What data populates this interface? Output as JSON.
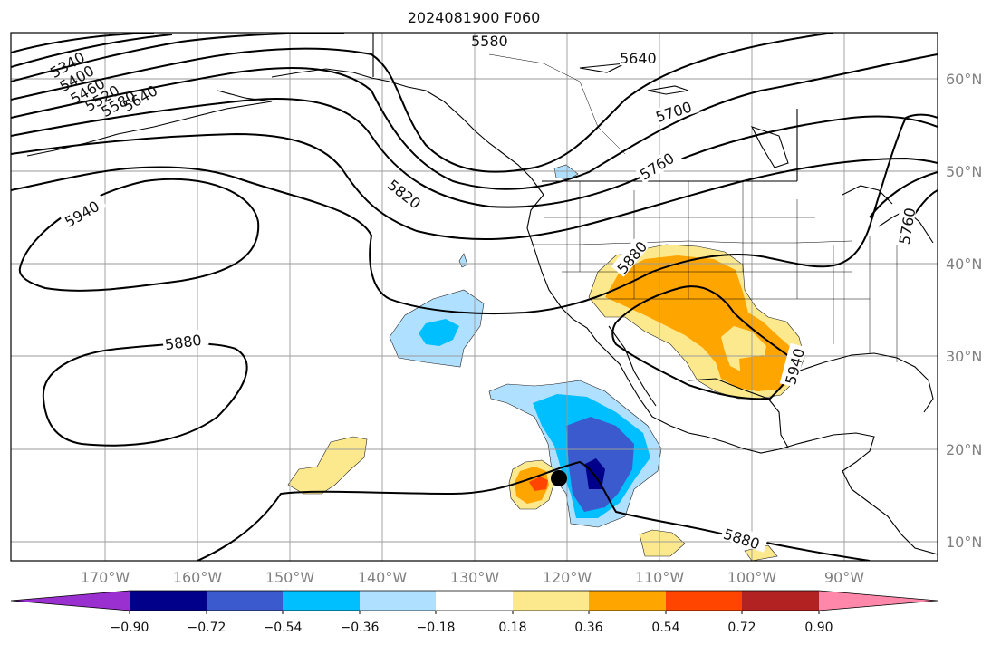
{
  "title": "2024081900 F060",
  "map": {
    "lat_labels": [
      "60°N",
      "50°N",
      "40°N",
      "30°N",
      "20°N",
      "10°N"
    ],
    "lon_labels": [
      "170°W",
      "160°W",
      "150°W",
      "140°W",
      "130°W",
      "120°W",
      "110°W",
      "100°W",
      "90°W"
    ],
    "contour_labels": [
      "5340",
      "5400",
      "5460",
      "5520",
      "5580",
      "5640",
      "5580",
      "5640",
      "5700",
      "5760",
      "5820",
      "5940",
      "5880",
      "5880",
      "5940",
      "5880",
      "5760"
    ],
    "colorbar": {
      "colors": [
        "#9b30d0",
        "#00008b",
        "#3a5acd",
        "#00bfff",
        "#b0e0ff",
        "#ffffff",
        "#fde98d",
        "#ffa500",
        "#ff4500",
        "#b22222",
        "#ff88aa"
      ],
      "tick_labels": [
        "−0.90",
        "−0.72",
        "−0.54",
        "−0.36",
        "−0.18",
        "0.18",
        "0.36",
        "0.54",
        "0.72",
        "0.90"
      ]
    },
    "marker": "storm-center-dot"
  }
}
